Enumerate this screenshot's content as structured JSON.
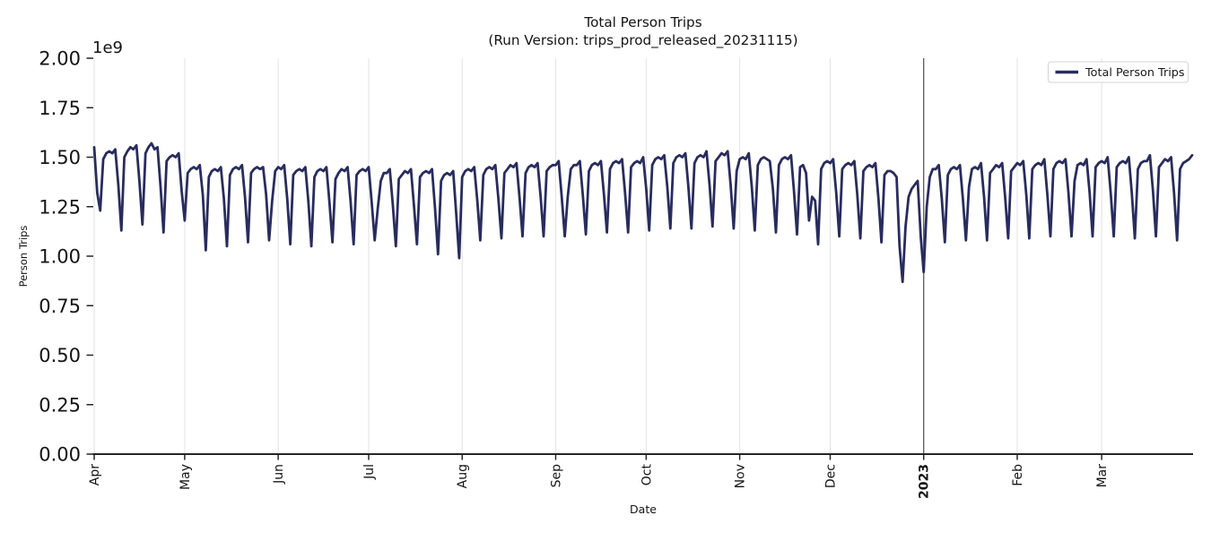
{
  "figure": {
    "title": "Total Person Trips",
    "subtitle": "(Run Version: trips_prod_released_20231115)",
    "xlabel": "Date",
    "ylabel": "Person Trips",
    "offset_label": "1e9"
  },
  "legend": {
    "label": "Total Person Trips",
    "position": "upper right"
  },
  "colors": {
    "line": "#282c5e",
    "grid": "#e2e2e2",
    "vline": "#3f3f3f",
    "spine": "#262626",
    "text": "#141414",
    "legend_border": "#d4d4d4"
  },
  "chart_data": {
    "type": "line",
    "title": "Total Person Trips",
    "subtitle": "(Run Version: trips_prod_released_20231115)",
    "xlabel": "Date",
    "ylabel": "Person Trips",
    "x_start_date": "2022-04-01",
    "x_end_date": "2023-03-31",
    "x_tick_labels": [
      "Apr",
      "May",
      "Jun",
      "Jul",
      "Aug",
      "Sep",
      "Oct",
      "Nov",
      "Dec",
      "2023",
      "Feb",
      "Mar"
    ],
    "x_tick_day_index": [
      0,
      30,
      61,
      91,
      122,
      153,
      183,
      214,
      244,
      275,
      306,
      334
    ],
    "x_bold_tick_label": "2023",
    "year_boundary_vline_day_index": 275,
    "y_tick_labels": [
      "0.00",
      "0.25",
      "0.50",
      "0.75",
      "1.00",
      "1.25",
      "1.50",
      "1.75",
      "2.00"
    ],
    "y_tick_values_1e9": [
      0,
      0.25,
      0.5,
      0.75,
      1.0,
      1.25,
      1.5,
      1.75,
      2.0
    ],
    "ylim_1e9": [
      0,
      2.0
    ],
    "values_unit": "1e9 person trips per day",
    "grid": "vertical-only",
    "legend_position": "upper right",
    "series": [
      {
        "name": "Total Person Trips",
        "daily_values_1e9": [
          1.55,
          1.32,
          1.23,
          1.49,
          1.52,
          1.53,
          1.52,
          1.54,
          1.36,
          1.13,
          1.5,
          1.53,
          1.55,
          1.54,
          1.56,
          1.38,
          1.16,
          1.52,
          1.55,
          1.57,
          1.54,
          1.55,
          1.35,
          1.12,
          1.48,
          1.5,
          1.51,
          1.5,
          1.52,
          1.33,
          1.18,
          1.42,
          1.44,
          1.45,
          1.44,
          1.46,
          1.31,
          1.03,
          1.4,
          1.43,
          1.44,
          1.43,
          1.45,
          1.29,
          1.05,
          1.41,
          1.44,
          1.45,
          1.44,
          1.46,
          1.3,
          1.07,
          1.42,
          1.44,
          1.45,
          1.44,
          1.45,
          1.31,
          1.08,
          1.28,
          1.43,
          1.45,
          1.44,
          1.46,
          1.29,
          1.06,
          1.41,
          1.43,
          1.44,
          1.43,
          1.45,
          1.28,
          1.05,
          1.4,
          1.43,
          1.44,
          1.43,
          1.45,
          1.27,
          1.07,
          1.39,
          1.42,
          1.44,
          1.43,
          1.45,
          1.28,
          1.06,
          1.41,
          1.43,
          1.44,
          1.43,
          1.45,
          1.27,
          1.08,
          1.24,
          1.38,
          1.42,
          1.42,
          1.44,
          1.26,
          1.05,
          1.39,
          1.41,
          1.43,
          1.42,
          1.44,
          1.26,
          1.06,
          1.4,
          1.42,
          1.43,
          1.42,
          1.44,
          1.24,
          1.01,
          1.38,
          1.41,
          1.42,
          1.41,
          1.43,
          1.22,
          0.99,
          1.4,
          1.43,
          1.44,
          1.43,
          1.45,
          1.28,
          1.08,
          1.41,
          1.44,
          1.45,
          1.44,
          1.46,
          1.29,
          1.09,
          1.42,
          1.44,
          1.46,
          1.45,
          1.47,
          1.3,
          1.1,
          1.42,
          1.45,
          1.46,
          1.45,
          1.47,
          1.3,
          1.1,
          1.43,
          1.45,
          1.46,
          1.46,
          1.48,
          1.3,
          1.1,
          1.3,
          1.44,
          1.46,
          1.46,
          1.48,
          1.31,
          1.11,
          1.43,
          1.46,
          1.47,
          1.46,
          1.48,
          1.31,
          1.12,
          1.44,
          1.47,
          1.48,
          1.47,
          1.49,
          1.32,
          1.12,
          1.45,
          1.47,
          1.48,
          1.47,
          1.5,
          1.34,
          1.13,
          1.46,
          1.49,
          1.5,
          1.49,
          1.51,
          1.35,
          1.14,
          1.47,
          1.5,
          1.51,
          1.5,
          1.52,
          1.35,
          1.14,
          1.47,
          1.5,
          1.51,
          1.5,
          1.53,
          1.36,
          1.15,
          1.48,
          1.5,
          1.52,
          1.51,
          1.53,
          1.36,
          1.14,
          1.43,
          1.49,
          1.5,
          1.49,
          1.52,
          1.35,
          1.13,
          1.46,
          1.49,
          1.5,
          1.49,
          1.48,
          1.34,
          1.12,
          1.46,
          1.49,
          1.5,
          1.49,
          1.51,
          1.33,
          1.11,
          1.45,
          1.46,
          1.42,
          1.18,
          1.3,
          1.28,
          1.06,
          1.44,
          1.47,
          1.48,
          1.47,
          1.49,
          1.32,
          1.1,
          1.44,
          1.46,
          1.47,
          1.46,
          1.48,
          1.31,
          1.09,
          1.43,
          1.45,
          1.46,
          1.45,
          1.47,
          1.29,
          1.07,
          1.41,
          1.43,
          1.43,
          1.42,
          1.4,
          1.05,
          0.87,
          1.15,
          1.3,
          1.34,
          1.36,
          1.38,
          1.1,
          0.92,
          1.25,
          1.4,
          1.44,
          1.44,
          1.46,
          1.29,
          1.07,
          1.41,
          1.44,
          1.45,
          1.44,
          1.46,
          1.29,
          1.08,
          1.35,
          1.44,
          1.45,
          1.44,
          1.47,
          1.3,
          1.08,
          1.42,
          1.44,
          1.46,
          1.45,
          1.47,
          1.3,
          1.09,
          1.43,
          1.45,
          1.47,
          1.46,
          1.48,
          1.31,
          1.09,
          1.44,
          1.46,
          1.47,
          1.46,
          1.49,
          1.31,
          1.1,
          1.44,
          1.47,
          1.48,
          1.47,
          1.49,
          1.32,
          1.1,
          1.38,
          1.46,
          1.47,
          1.46,
          1.49,
          1.32,
          1.1,
          1.45,
          1.47,
          1.48,
          1.47,
          1.5,
          1.32,
          1.1,
          1.45,
          1.47,
          1.48,
          1.47,
          1.5,
          1.32,
          1.09,
          1.44,
          1.47,
          1.48,
          1.48,
          1.51,
          1.33,
          1.1,
          1.45,
          1.47,
          1.49,
          1.48,
          1.5,
          1.32,
          1.08,
          1.44,
          1.47,
          1.48,
          1.49,
          1.51
        ]
      }
    ]
  }
}
